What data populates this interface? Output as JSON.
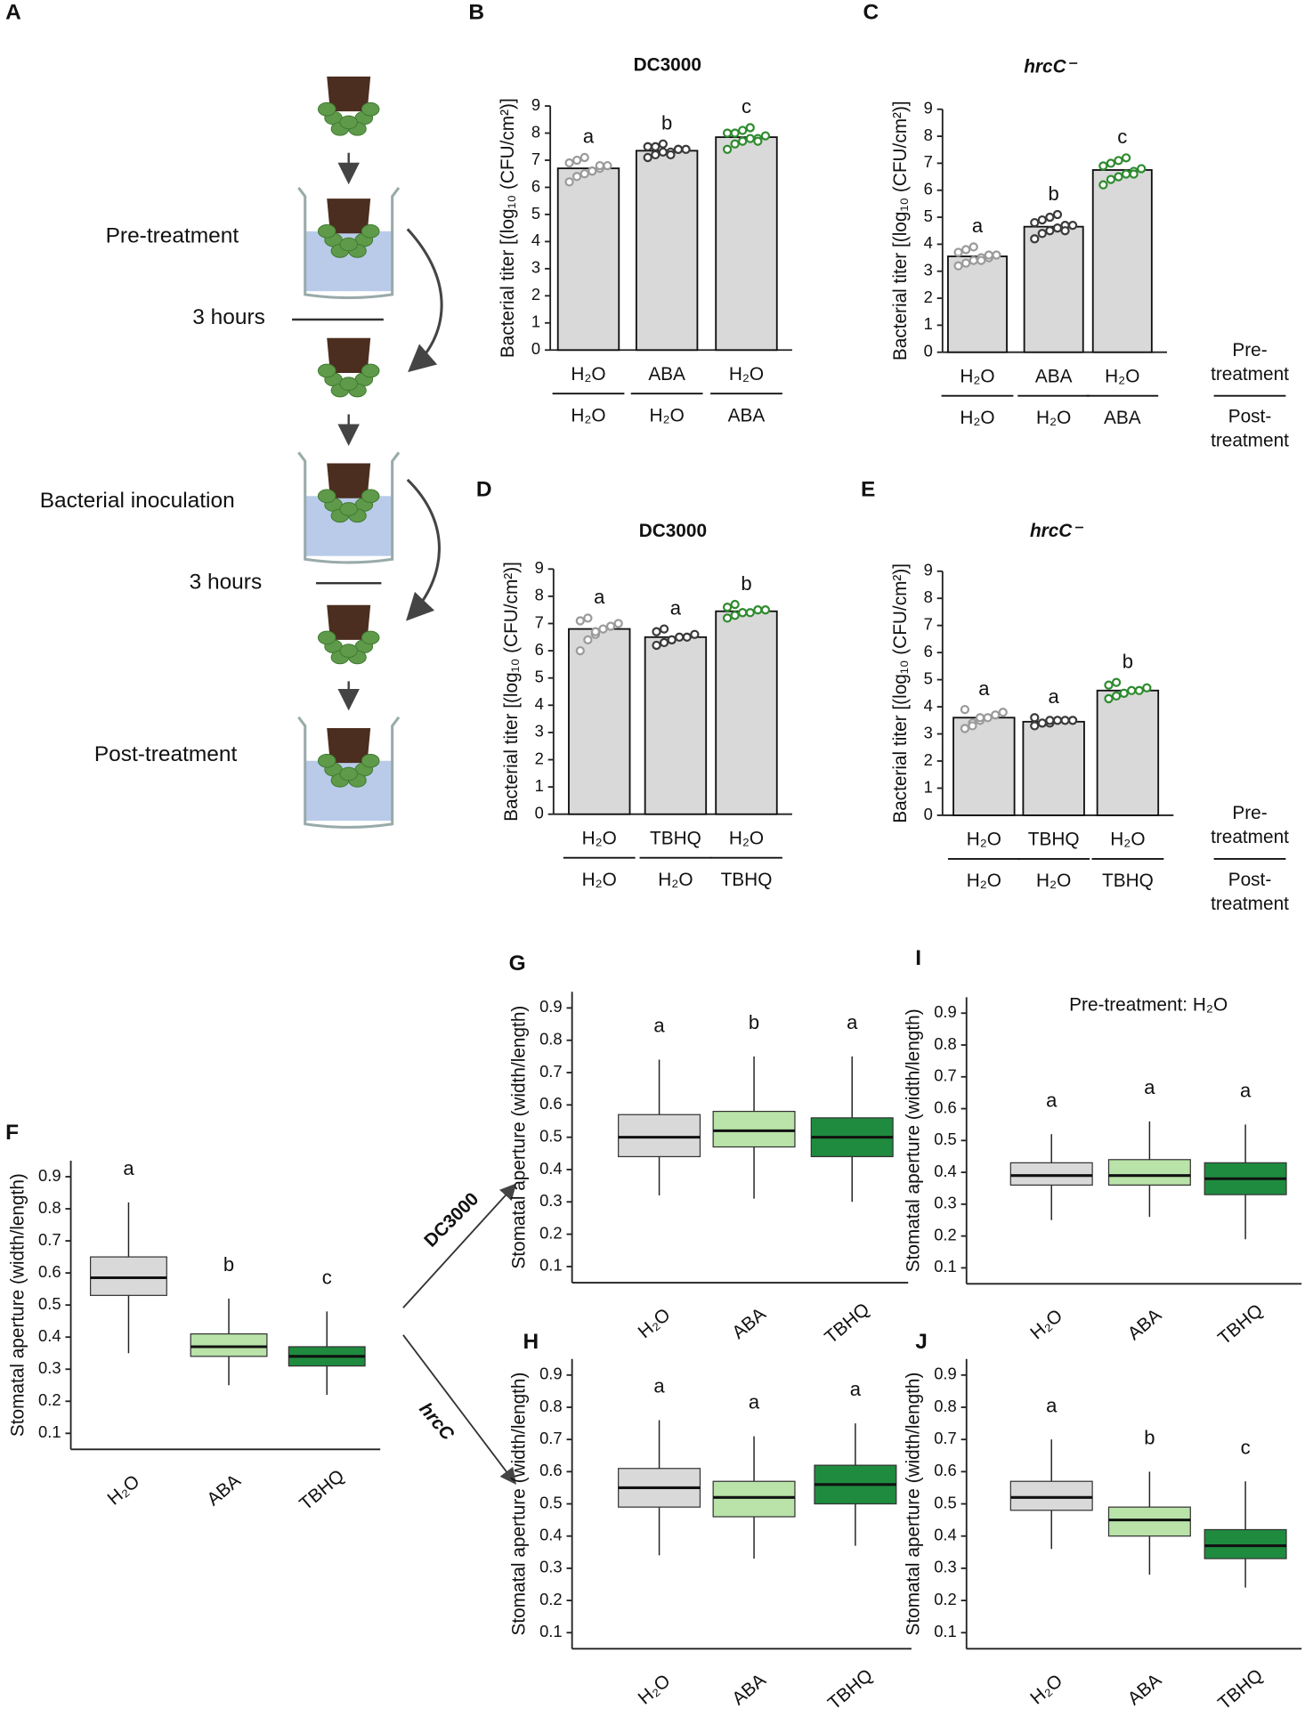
{
  "diagram": {
    "label": "A",
    "steps": [
      "Pre-treatment",
      "Bacterial inoculation",
      "Post-treatment"
    ],
    "intervals": [
      "3 hours",
      "3 hours"
    ]
  },
  "arrows": {
    "upper": "DC3000",
    "lower": "hrcC"
  },
  "chart_data": [
    {
      "type": "bar",
      "label": "B",
      "title": "DC3000",
      "title_style": "normal",
      "ylabel": "Bacterial titer [(log₁₀ (CFU/cm²)]",
      "pre_treatment": [
        "H₂O",
        "ABA",
        "H₂O"
      ],
      "post_treatment": [
        "H₂O",
        "H₂O",
        "ABA"
      ],
      "values": [
        6.7,
        7.35,
        7.85
      ],
      "points": [
        [
          6.2,
          6.4,
          6.5,
          6.6,
          6.7,
          6.8,
          6.9,
          7.0,
          7.1,
          6.6,
          6.8
        ],
        [
          7.1,
          7.2,
          7.3,
          7.3,
          7.4,
          7.4,
          7.5,
          7.5,
          7.6,
          7.2,
          7.4
        ],
        [
          7.4,
          7.6,
          7.7,
          7.8,
          7.8,
          7.9,
          8.0,
          8.0,
          8.1,
          8.2,
          7.7
        ]
      ],
      "colors": [
        "#9a9a9a",
        "#3a3a3a",
        "#2e8b2e"
      ],
      "bar_color": "#d9d9d9",
      "sig_letters": [
        "a",
        "b",
        "c"
      ],
      "ylim": [
        0,
        9
      ],
      "yticks": [
        0,
        1,
        2,
        3,
        4,
        5,
        6,
        7,
        8,
        9
      ]
    },
    {
      "type": "bar",
      "label": "C",
      "title": "hrcC⁻",
      "title_style": "italic",
      "ylabel": "Bacterial titer [(log₁₀ (CFU/cm²)]",
      "pre_treatment": [
        "H₂O",
        "ABA",
        "H₂O"
      ],
      "post_treatment": [
        "H₂O",
        "H₂O",
        "ABA"
      ],
      "values": [
        3.55,
        4.65,
        6.75
      ],
      "points": [
        [
          3.2,
          3.3,
          3.4,
          3.5,
          3.5,
          3.6,
          3.7,
          3.8,
          3.9,
          3.4,
          3.6
        ],
        [
          4.2,
          4.4,
          4.5,
          4.6,
          4.7,
          4.7,
          4.8,
          4.9,
          5.0,
          5.1,
          4.5
        ],
        [
          6.2,
          6.4,
          6.5,
          6.6,
          6.7,
          6.8,
          6.9,
          7.0,
          7.1,
          7.2,
          6.6
        ]
      ],
      "colors": [
        "#9a9a9a",
        "#3a3a3a",
        "#2e8b2e"
      ],
      "bar_color": "#d9d9d9",
      "sig_letters": [
        "a",
        "b",
        "c"
      ],
      "row_labels": {
        "pre": [
          "Pre-",
          "treatment"
        ],
        "post": [
          "Post-",
          "treatment"
        ]
      },
      "ylim": [
        0,
        9
      ],
      "yticks": [
        0,
        1,
        2,
        3,
        4,
        5,
        6,
        7,
        8,
        9
      ]
    },
    {
      "type": "bar",
      "label": "D",
      "title": "DC3000",
      "title_style": "normal",
      "ylabel": "Bacterial titer [(log₁₀ (CFU/cm²)]",
      "pre_treatment": [
        "H₂O",
        "TBHQ",
        "H₂O"
      ],
      "post_treatment": [
        "H₂O",
        "H₂O",
        "TBHQ"
      ],
      "values": [
        6.8,
        6.5,
        7.45
      ],
      "points": [
        [
          6.0,
          6.4,
          6.6,
          6.8,
          6.9,
          7.0,
          7.1,
          7.2,
          6.7
        ],
        [
          6.2,
          6.3,
          6.4,
          6.5,
          6.5,
          6.6,
          6.7,
          6.8,
          6.4
        ],
        [
          7.2,
          7.3,
          7.4,
          7.4,
          7.5,
          7.5,
          7.6,
          7.7,
          7.4
        ]
      ],
      "colors": [
        "#9a9a9a",
        "#3a3a3a",
        "#2e8b2e"
      ],
      "bar_color": "#d9d9d9",
      "sig_letters": [
        "a",
        "a",
        "b"
      ],
      "ylim": [
        0,
        9
      ],
      "yticks": [
        0,
        1,
        2,
        3,
        4,
        5,
        6,
        7,
        8,
        9
      ]
    },
    {
      "type": "bar",
      "label": "E",
      "title": "hrcC⁻",
      "title_style": "italic",
      "ylabel": "Bacterial titer [(log₁₀ (CFU/cm²)]",
      "pre_treatment": [
        "H₂O",
        "TBHQ",
        "H₂O"
      ],
      "post_treatment": [
        "H₂O",
        "H₂O",
        "TBHQ"
      ],
      "values": [
        3.6,
        3.45,
        4.6
      ],
      "points": [
        [
          3.2,
          3.4,
          3.5,
          3.6,
          3.7,
          3.8,
          3.9,
          3.3,
          3.6
        ],
        [
          3.3,
          3.4,
          3.4,
          3.5,
          3.5,
          3.5,
          3.6,
          3.4,
          3.5
        ],
        [
          4.3,
          4.4,
          4.5,
          4.6,
          4.6,
          4.7,
          4.8,
          4.9,
          4.5
        ]
      ],
      "colors": [
        "#9a9a9a",
        "#3a3a3a",
        "#2e8b2e"
      ],
      "bar_color": "#d9d9d9",
      "sig_letters": [
        "a",
        "a",
        "b"
      ],
      "row_labels": {
        "pre": [
          "Pre-",
          "treatment"
        ],
        "post": [
          "Post-",
          "treatment"
        ]
      },
      "ylim": [
        0,
        9
      ],
      "yticks": [
        0,
        1,
        2,
        3,
        4,
        5,
        6,
        7,
        8,
        9
      ]
    },
    {
      "type": "box",
      "label": "F",
      "ylabel": "Stomatal aperture (width/length)",
      "categories": [
        "H₂O",
        "ABA",
        "TBHQ"
      ],
      "colors": [
        "#d9d9d9",
        "#b9e3a8",
        "#1f8b3f"
      ],
      "boxes": [
        {
          "whisker_low": 0.35,
          "q1": 0.53,
          "median": 0.585,
          "q3": 0.65,
          "whisker_high": 0.82
        },
        {
          "whisker_low": 0.25,
          "q1": 0.34,
          "median": 0.37,
          "q3": 0.41,
          "whisker_high": 0.52
        },
        {
          "whisker_low": 0.22,
          "q1": 0.31,
          "median": 0.34,
          "q3": 0.37,
          "whisker_high": 0.48
        }
      ],
      "sig_letters": [
        "a",
        "b",
        "c"
      ],
      "ylim": [
        0.05,
        0.95
      ],
      "yticks": [
        0.1,
        0.2,
        0.3,
        0.4,
        0.5,
        0.6,
        0.7,
        0.8,
        0.9
      ]
    },
    {
      "type": "box",
      "label": "G",
      "ylabel": "Stomatal aperture (width/length)",
      "categories": [
        "H₂O",
        "ABA",
        "TBHQ"
      ],
      "colors": [
        "#d9d9d9",
        "#b9e3a8",
        "#1f8b3f"
      ],
      "boxes": [
        {
          "whisker_low": 0.32,
          "q1": 0.44,
          "median": 0.5,
          "q3": 0.57,
          "whisker_high": 0.74
        },
        {
          "whisker_low": 0.31,
          "q1": 0.47,
          "median": 0.52,
          "q3": 0.58,
          "whisker_high": 0.75
        },
        {
          "whisker_low": 0.3,
          "q1": 0.44,
          "median": 0.5,
          "q3": 0.56,
          "whisker_high": 0.75
        }
      ],
      "sig_letters": [
        "a",
        "b",
        "a"
      ],
      "ylim": [
        0.05,
        0.95
      ],
      "yticks": [
        0.1,
        0.2,
        0.3,
        0.4,
        0.5,
        0.6,
        0.7,
        0.8,
        0.9
      ]
    },
    {
      "type": "box",
      "label": "H",
      "ylabel": "Stomatal aperture (width/length)",
      "categories": [
        "H₂O",
        "ABA",
        "TBHQ"
      ],
      "colors": [
        "#d9d9d9",
        "#b9e3a8",
        "#1f8b3f"
      ],
      "boxes": [
        {
          "whisker_low": 0.34,
          "q1": 0.49,
          "median": 0.55,
          "q3": 0.61,
          "whisker_high": 0.76
        },
        {
          "whisker_low": 0.33,
          "q1": 0.46,
          "median": 0.52,
          "q3": 0.57,
          "whisker_high": 0.71
        },
        {
          "whisker_low": 0.37,
          "q1": 0.5,
          "median": 0.56,
          "q3": 0.62,
          "whisker_high": 0.75
        }
      ],
      "sig_letters": [
        "a",
        "a",
        "a"
      ],
      "ylim": [
        0.05,
        0.95
      ],
      "yticks": [
        0.1,
        0.2,
        0.3,
        0.4,
        0.5,
        0.6,
        0.7,
        0.8,
        0.9
      ]
    },
    {
      "type": "box",
      "label": "I",
      "ylabel": "Stomatal aperture (width/length)",
      "note": "Pre-treatment: H₂O",
      "categories": [
        "H₂O",
        "ABA",
        "TBHQ"
      ],
      "colors": [
        "#d9d9d9",
        "#b9e3a8",
        "#1f8b3f"
      ],
      "boxes": [
        {
          "whisker_low": 0.25,
          "q1": 0.36,
          "median": 0.39,
          "q3": 0.43,
          "whisker_high": 0.52
        },
        {
          "whisker_low": 0.26,
          "q1": 0.36,
          "median": 0.39,
          "q3": 0.44,
          "whisker_high": 0.56
        },
        {
          "whisker_low": 0.19,
          "q1": 0.33,
          "median": 0.38,
          "q3": 0.43,
          "whisker_high": 0.55
        }
      ],
      "sig_letters": [
        "a",
        "a",
        "a"
      ],
      "ylim": [
        0.05,
        0.95
      ],
      "yticks": [
        0.1,
        0.2,
        0.3,
        0.4,
        0.5,
        0.6,
        0.7,
        0.8,
        0.9
      ]
    },
    {
      "type": "box",
      "label": "J",
      "ylabel": "Stomatal aperture (width/length)",
      "categories": [
        "H₂O",
        "ABA",
        "TBHQ"
      ],
      "colors": [
        "#d9d9d9",
        "#b9e3a8",
        "#1f8b3f"
      ],
      "boxes": [
        {
          "whisker_low": 0.36,
          "q1": 0.48,
          "median": 0.52,
          "q3": 0.57,
          "whisker_high": 0.7
        },
        {
          "whisker_low": 0.28,
          "q1": 0.4,
          "median": 0.45,
          "q3": 0.49,
          "whisker_high": 0.6
        },
        {
          "whisker_low": 0.24,
          "q1": 0.33,
          "median": 0.37,
          "q3": 0.42,
          "whisker_high": 0.57
        }
      ],
      "sig_letters": [
        "a",
        "b",
        "c"
      ],
      "ylim": [
        0.05,
        0.95
      ],
      "yticks": [
        0.1,
        0.2,
        0.3,
        0.4,
        0.5,
        0.6,
        0.7,
        0.8,
        0.9
      ]
    }
  ]
}
